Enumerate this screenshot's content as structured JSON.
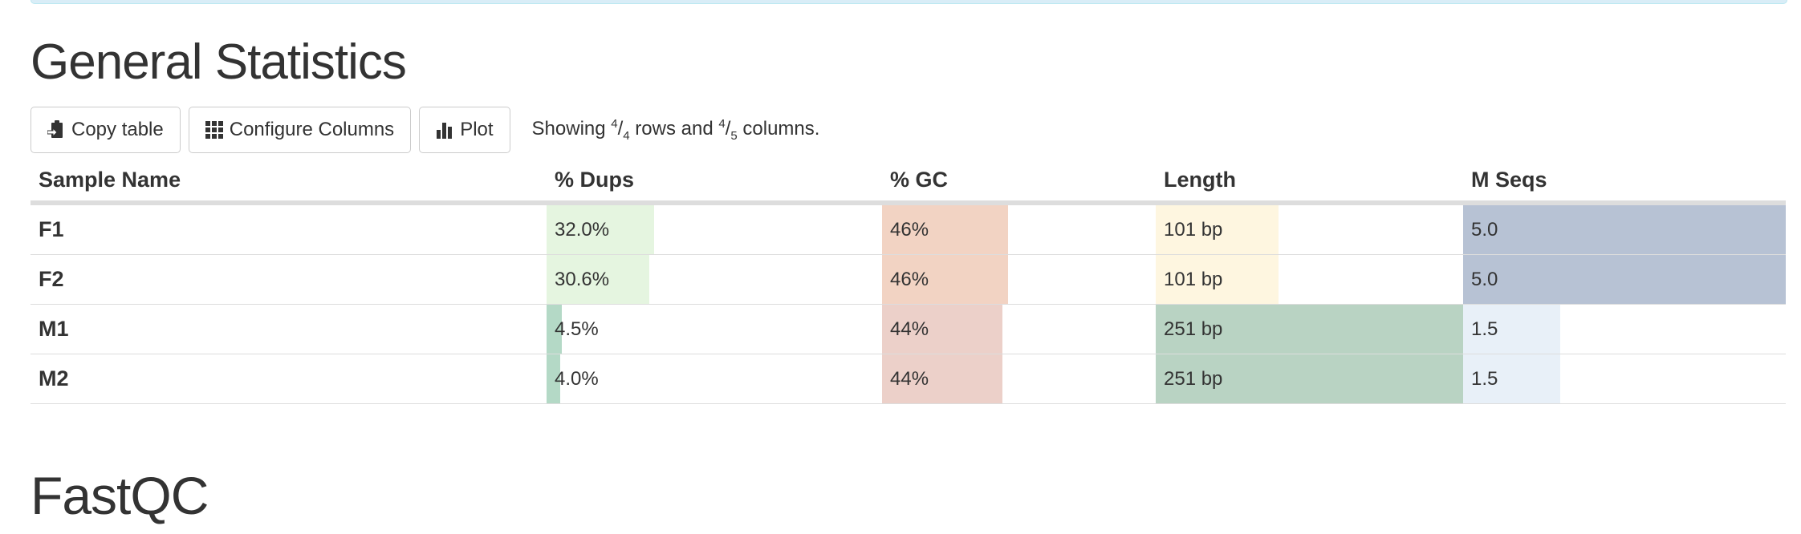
{
  "general_statistics": {
    "title": "General Statistics",
    "toolbar": {
      "copy_label": "Copy table",
      "configure_label": "Configure Columns",
      "plot_label": "Plot",
      "showing": {
        "prefix": "Showing ",
        "rows_shown": "4",
        "rows_total": "4",
        "middle": " rows and ",
        "cols_shown": "4",
        "cols_total": "5",
        "suffix": " columns."
      }
    },
    "columns": [
      "Sample Name",
      "% Dups",
      "% GC",
      "Length",
      "M Seqs"
    ],
    "rows": [
      {
        "sample": "F1",
        "dups": "32.0%",
        "gc": "46%",
        "length": "101 bp",
        "mseqs": "5.0"
      },
      {
        "sample": "F2",
        "dups": "30.6%",
        "gc": "46%",
        "length": "101 bp",
        "mseqs": "5.0"
      },
      {
        "sample": "M1",
        "dups": "4.5%",
        "gc": "44%",
        "length": "251 bp",
        "mseqs": "1.5"
      },
      {
        "sample": "M2",
        "dups": "4.0%",
        "gc": "44%",
        "length": "251 bp",
        "mseqs": "1.5"
      }
    ],
    "bar_fill_fractions": {
      "dups": [
        0.32,
        0.306,
        0.045,
        0.04
      ],
      "gc": [
        0.46,
        0.46,
        0.44,
        0.44
      ],
      "length": [
        0.4,
        0.4,
        1.0,
        1.0
      ],
      "mseqs": [
        1.0,
        1.0,
        0.3,
        0.3
      ]
    },
    "bar_colors": {
      "dups": [
        "#e5f5e0",
        "#e5f5e0",
        "#b4d9c6",
        "#b4d9c6"
      ],
      "gc": [
        "#f2d3c3",
        "#f2d3c3",
        "#ecd0c9",
        "#ecd0c9"
      ],
      "length": [
        "#fef6e0",
        "#fef6e0",
        "#b9d3c3",
        "#b9d3c3"
      ],
      "mseqs": [
        "#b7c2d4",
        "#b7c2d4",
        "#e8f0f8",
        "#e8f0f8"
      ]
    }
  },
  "fastqc": {
    "title": "FastQC"
  },
  "icons": {
    "copy": "clipboard-icon",
    "configure": "grid-icon",
    "plot": "bar-chart-icon"
  }
}
